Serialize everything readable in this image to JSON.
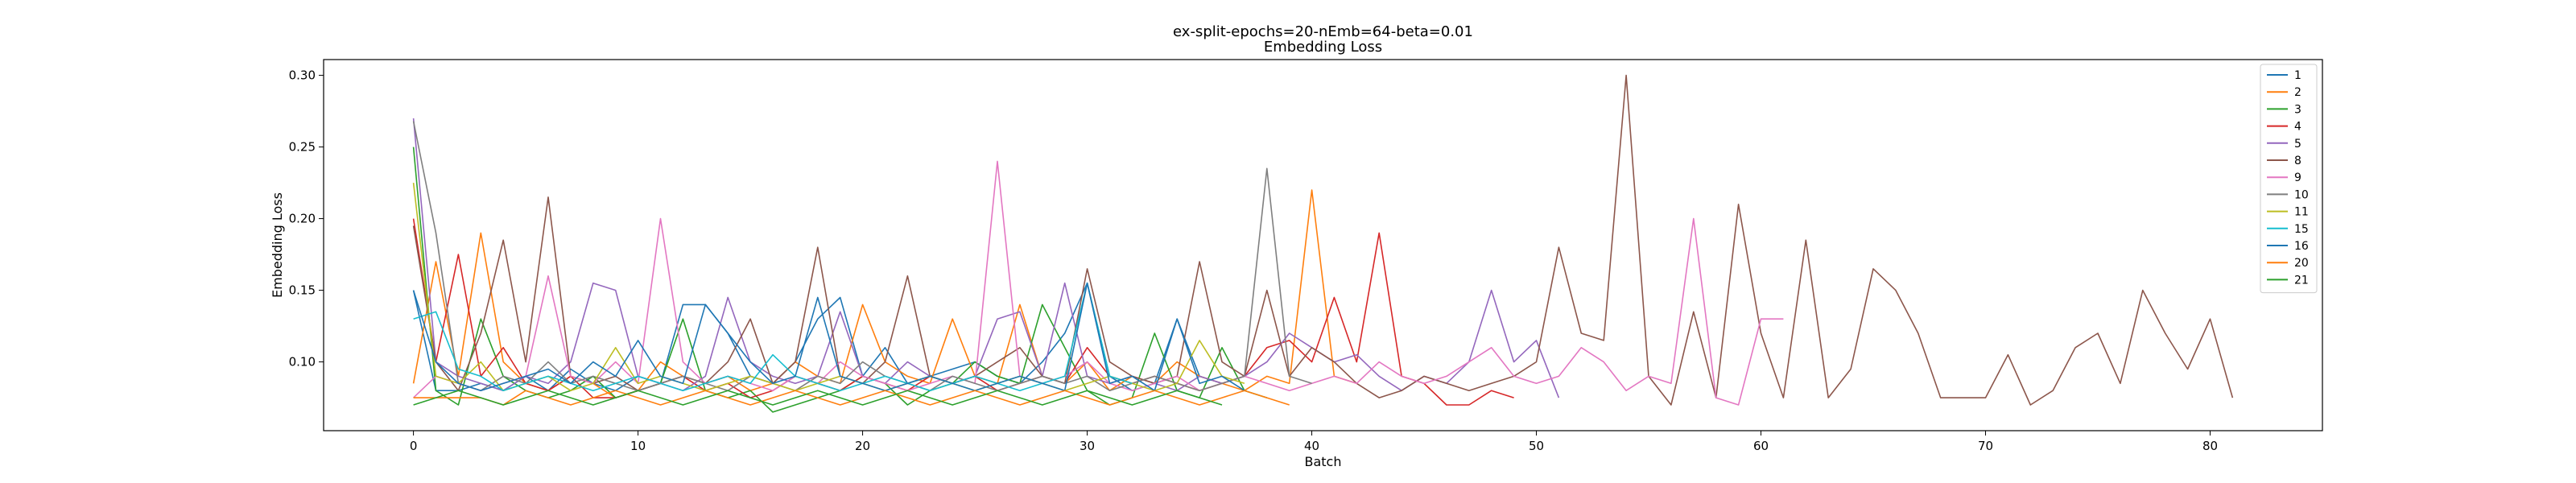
{
  "chart_data": {
    "type": "line",
    "title": "ex-split-epochs=20-nEmb=64-beta=0.01",
    "subtitle": "Embedding Loss",
    "xlabel": "Batch",
    "ylabel": "Embedding Loss",
    "xlim": [
      -4,
      85
    ],
    "ylim": [
      0.052,
      0.311
    ],
    "xticks": [
      0,
      10,
      20,
      30,
      40,
      50,
      60,
      70,
      80
    ],
    "yticks": [
      0.1,
      0.15,
      0.2,
      0.25,
      0.3
    ],
    "xtick_labels": [
      "0",
      "10",
      "20",
      "30",
      "40",
      "50",
      "60",
      "70",
      "80"
    ],
    "ytick_labels": [
      "0.10",
      "0.15",
      "0.20",
      "0.25",
      "0.30"
    ],
    "grid": false,
    "legend_position": "top-right",
    "series": [
      {
        "name": "1",
        "color": "#1f77b4",
        "values": [
          0.15,
          0.08,
          0.08,
          0.085,
          0.08,
          0.09,
          0.08,
          0.095,
          0.085,
          0.08,
          0.09,
          0.085,
          0.14,
          0.14,
          0.12,
          0.09,
          0.085,
          0.1,
          0.13,
          0.145,
          0.09,
          0.11,
          0.085,
          0.09,
          0.095,
          0.1,
          0.09,
          0.085,
          0.1,
          0.12,
          0.155,
          0.09,
          0.08,
          0.085,
          0.13,
          0.09,
          0.085
        ]
      },
      {
        "name": "2",
        "color": "#ff7f0e",
        "values": [
          0.085,
          0.17,
          0.09,
          0.19,
          0.1,
          0.085,
          0.08,
          0.09,
          0.085,
          0.075,
          0.08,
          0.1,
          0.09,
          0.085,
          0.09,
          0.08,
          0.085,
          0.1,
          0.09,
          0.085,
          0.14,
          0.1,
          0.09,
          0.085,
          0.13,
          0.09,
          0.085,
          0.14,
          0.09,
          0.085,
          0.1,
          0.08,
          0.09,
          0.085,
          0.1,
          0.09,
          0.085,
          0.08,
          0.09,
          0.085,
          0.22,
          0.09,
          0.085
        ]
      },
      {
        "name": "3",
        "color": "#2ca02c",
        "values": [
          0.25,
          0.08,
          0.07,
          0.13,
          0.09,
          0.08,
          0.075,
          0.08,
          0.09,
          0.075,
          0.08,
          0.085,
          0.13,
          0.08,
          0.075,
          0.08,
          0.065,
          0.07,
          0.075,
          0.08,
          0.09,
          0.085,
          0.07,
          0.08,
          0.085,
          0.1,
          0.09,
          0.085,
          0.14,
          0.11,
          0.08,
          0.07,
          0.075,
          0.12,
          0.08,
          0.075,
          0.11,
          0.08,
          0.075
        ]
      },
      {
        "name": "4",
        "color": "#d62728",
        "values": [
          0.2,
          0.1,
          0.175,
          0.09,
          0.11,
          0.085,
          0.08,
          0.09,
          0.075,
          0.075,
          0.08,
          0.085,
          0.09,
          0.08,
          0.085,
          0.075,
          0.08,
          0.09,
          0.085,
          0.08,
          0.09,
          0.085,
          0.08,
          0.09,
          0.085,
          0.09,
          0.08,
          0.085,
          0.09,
          0.085,
          0.11,
          0.09,
          0.085,
          0.09,
          0.085,
          0.08,
          0.085,
          0.09,
          0.11,
          0.115,
          0.1,
          0.145,
          0.1,
          0.19,
          0.09,
          0.085,
          0.07,
          0.07,
          0.08,
          0.075
        ]
      },
      {
        "name": "5",
        "color": "#9467bd",
        "values": [
          0.27,
          0.1,
          0.09,
          0.085,
          0.08,
          0.09,
          0.085,
          0.1,
          0.155,
          0.15,
          0.09,
          0.085,
          0.08,
          0.09,
          0.145,
          0.1,
          0.09,
          0.085,
          0.09,
          0.135,
          0.09,
          0.085,
          0.1,
          0.09,
          0.085,
          0.09,
          0.13,
          0.135,
          0.09,
          0.155,
          0.09,
          0.085,
          0.09,
          0.085,
          0.08,
          0.09,
          0.085,
          0.09,
          0.1,
          0.12,
          0.11,
          0.1,
          0.105,
          0.09,
          0.08,
          0.09,
          0.085,
          0.1,
          0.15,
          0.1,
          0.115,
          0.075
        ]
      },
      {
        "name": "8",
        "color": "#8c564b",
        "values": [
          0.195,
          0.1,
          0.08,
          0.12,
          0.185,
          0.1,
          0.215,
          0.09,
          0.085,
          0.09,
          0.08,
          0.085,
          0.09,
          0.085,
          0.1,
          0.13,
          0.085,
          0.1,
          0.18,
          0.09,
          0.085,
          0.1,
          0.16,
          0.09,
          0.085,
          0.09,
          0.1,
          0.11,
          0.09,
          0.085,
          0.165,
          0.1,
          0.09,
          0.085,
          0.09,
          0.17,
          0.1,
          0.09,
          0.15,
          0.09,
          0.11,
          0.1,
          0.085,
          0.075,
          0.08,
          0.09,
          0.085,
          0.08,
          0.085,
          0.09,
          0.1,
          0.18,
          0.12,
          0.115,
          0.3,
          0.09,
          0.07,
          0.135,
          0.075,
          0.21,
          0.12,
          0.075,
          0.185,
          0.075,
          0.095,
          0.165,
          0.15,
          0.12,
          0.075,
          0.075,
          0.075,
          0.105,
          0.07,
          0.08,
          0.11,
          0.12,
          0.085,
          0.15,
          0.12,
          0.095,
          0.13,
          0.075
        ]
      },
      {
        "name": "9",
        "color": "#e377c2",
        "values": [
          0.075,
          0.09,
          0.085,
          0.08,
          0.085,
          0.09,
          0.16,
          0.09,
          0.085,
          0.1,
          0.085,
          0.2,
          0.1,
          0.085,
          0.09,
          0.085,
          0.08,
          0.09,
          0.085,
          0.1,
          0.09,
          0.085,
          0.08,
          0.085,
          0.09,
          0.085,
          0.24,
          0.09,
          0.085,
          0.09,
          0.1,
          0.085,
          0.08,
          0.085,
          0.09,
          0.08,
          0.085,
          0.09,
          0.085,
          0.08,
          0.085,
          0.09,
          0.085,
          0.1,
          0.09,
          0.085,
          0.09,
          0.1,
          0.11,
          0.09,
          0.085,
          0.09,
          0.11,
          0.1,
          0.08,
          0.09,
          0.085,
          0.2,
          0.075,
          0.07,
          0.13,
          0.13
        ]
      },
      {
        "name": "10",
        "color": "#7f7f7f",
        "values": [
          0.268,
          0.19,
          0.085,
          0.08,
          0.09,
          0.085,
          0.1,
          0.085,
          0.09,
          0.085,
          0.08,
          0.085,
          0.09,
          0.085,
          0.08,
          0.09,
          0.085,
          0.08,
          0.09,
          0.085,
          0.1,
          0.09,
          0.085,
          0.08,
          0.09,
          0.085,
          0.08,
          0.085,
          0.09,
          0.085,
          0.09,
          0.08,
          0.085,
          0.09,
          0.085,
          0.08,
          0.085,
          0.09,
          0.235,
          0.09,
          0.085
        ]
      },
      {
        "name": "11",
        "color": "#bcbd22",
        "values": [
          0.225,
          0.09,
          0.085,
          0.1,
          0.08,
          0.085,
          0.09,
          0.08,
          0.085,
          0.11,
          0.085,
          0.09,
          0.085,
          0.08,
          0.085,
          0.09,
          0.085,
          0.08,
          0.085,
          0.09,
          0.085,
          0.08,
          0.085,
          0.09,
          0.085,
          0.08,
          0.085,
          0.09,
          0.085,
          0.08,
          0.085,
          0.09,
          0.085,
          0.08,
          0.085,
          0.115,
          0.09,
          0.085
        ]
      },
      {
        "name": "15",
        "color": "#17becf",
        "values": [
          0.13,
          0.135,
          0.095,
          0.09,
          0.08,
          0.085,
          0.09,
          0.085,
          0.08,
          0.085,
          0.09,
          0.085,
          0.08,
          0.085,
          0.09,
          0.085,
          0.105,
          0.09,
          0.085,
          0.08,
          0.085,
          0.09,
          0.085,
          0.08,
          0.085,
          0.09,
          0.085,
          0.08,
          0.085,
          0.09,
          0.155,
          0.09,
          0.085
        ]
      },
      {
        "name": "16",
        "color": "#1f77b4",
        "values": [
          0.15,
          0.1,
          0.085,
          0.08,
          0.085,
          0.09,
          0.095,
          0.085,
          0.1,
          0.09,
          0.115,
          0.09,
          0.085,
          0.14,
          0.12,
          0.1,
          0.085,
          0.09,
          0.145,
          0.09,
          0.085,
          0.08,
          0.085,
          0.09,
          0.085,
          0.08,
          0.085,
          0.09,
          0.085,
          0.08,
          0.155,
          0.085,
          0.09,
          0.08,
          0.13,
          0.085,
          0.09,
          0.08
        ]
      },
      {
        "name": "20",
        "color": "#ff7f0e",
        "values": [
          0.075,
          0.075,
          0.075,
          0.075,
          0.07,
          0.08,
          0.075,
          0.07,
          0.075,
          0.08,
          0.075,
          0.07,
          0.075,
          0.08,
          0.075,
          0.07,
          0.075,
          0.08,
          0.075,
          0.07,
          0.075,
          0.08,
          0.075,
          0.07,
          0.075,
          0.08,
          0.075,
          0.07,
          0.075,
          0.08,
          0.075,
          0.07,
          0.075,
          0.08,
          0.075,
          0.07,
          0.075,
          0.08,
          0.075,
          0.07
        ]
      },
      {
        "name": "21",
        "color": "#2ca02c",
        "values": [
          0.07,
          0.075,
          0.08,
          0.075,
          0.07,
          0.075,
          0.08,
          0.075,
          0.07,
          0.075,
          0.08,
          0.075,
          0.07,
          0.075,
          0.08,
          0.075,
          0.07,
          0.075,
          0.08,
          0.075,
          0.07,
          0.075,
          0.08,
          0.075,
          0.07,
          0.075,
          0.08,
          0.075,
          0.07,
          0.075,
          0.08,
          0.075,
          0.07,
          0.075,
          0.08,
          0.075,
          0.07
        ]
      }
    ]
  }
}
